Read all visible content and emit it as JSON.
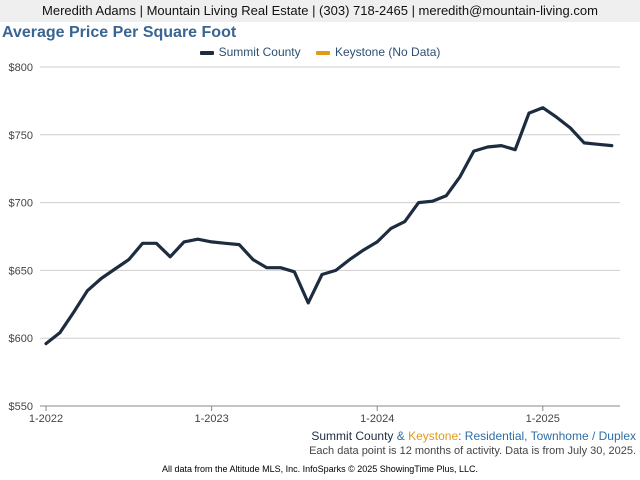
{
  "header": {
    "contact": "Meredith Adams | Mountain Living Real Estate | (303) 718-2465 | meredith@mountain-living.com"
  },
  "legend": {
    "items": [
      {
        "label": "Summit County",
        "color": "#1d2c3f"
      },
      {
        "label": "Keystone (No Data)",
        "color": "#e09a1a"
      }
    ]
  },
  "subtitle": {
    "area_a": "Summit County",
    "amp": " & ",
    "area_b": "Keystone",
    "rest": ": Residential, Townhome / Duplex"
  },
  "note": "Each data point is 12 months of activity. Data is from July 30, 2025.",
  "footer": "All data from the Altitude MLS, Inc. InfoSparks © 2025 ShowingTime Plus, LLC.",
  "chart_data": {
    "type": "line",
    "title": "Average Price Per Square Foot",
    "xlabel": "",
    "ylabel": "",
    "ylim": [
      550,
      800
    ],
    "yticks": [
      550,
      600,
      650,
      700,
      750,
      800
    ],
    "ytick_labels": [
      "$550",
      "$600",
      "$650",
      "$700",
      "$750",
      "$800"
    ],
    "xticks": [
      "2022-01",
      "2023-01",
      "2024-01",
      "2025-01"
    ],
    "xtick_labels": [
      "1-2022",
      "1-2023",
      "1-2024",
      "1-2025"
    ],
    "grid": true,
    "legend_position": "top-center",
    "series": [
      {
        "name": "Summit County",
        "color": "#1d2c3f",
        "points": [
          {
            "x": "2022-01",
            "y": 596
          },
          {
            "x": "2022-02",
            "y": 604
          },
          {
            "x": "2022-03",
            "y": 619
          },
          {
            "x": "2022-04",
            "y": 635
          },
          {
            "x": "2022-05",
            "y": 644
          },
          {
            "x": "2022-06",
            "y": 651
          },
          {
            "x": "2022-07",
            "y": 658
          },
          {
            "x": "2022-08",
            "y": 670
          },
          {
            "x": "2022-09",
            "y": 670
          },
          {
            "x": "2022-10",
            "y": 660
          },
          {
            "x": "2022-11",
            "y": 671
          },
          {
            "x": "2022-12",
            "y": 673
          },
          {
            "x": "2023-01",
            "y": 671
          },
          {
            "x": "2023-02",
            "y": 670
          },
          {
            "x": "2023-03",
            "y": 669
          },
          {
            "x": "2023-04",
            "y": 658
          },
          {
            "x": "2023-05",
            "y": 652
          },
          {
            "x": "2023-06",
            "y": 652
          },
          {
            "x": "2023-07",
            "y": 649
          },
          {
            "x": "2023-08",
            "y": 626
          },
          {
            "x": "2023-09",
            "y": 647
          },
          {
            "x": "2023-10",
            "y": 650
          },
          {
            "x": "2023-11",
            "y": 658
          },
          {
            "x": "2023-12",
            "y": 665
          },
          {
            "x": "2024-01",
            "y": 671
          },
          {
            "x": "2024-02",
            "y": 681
          },
          {
            "x": "2024-03",
            "y": 686
          },
          {
            "x": "2024-04",
            "y": 700
          },
          {
            "x": "2024-05",
            "y": 701
          },
          {
            "x": "2024-06",
            "y": 705
          },
          {
            "x": "2024-07",
            "y": 719
          },
          {
            "x": "2024-08",
            "y": 738
          },
          {
            "x": "2024-09",
            "y": 741
          },
          {
            "x": "2024-10",
            "y": 742
          },
          {
            "x": "2024-11",
            "y": 739
          },
          {
            "x": "2024-12",
            "y": 766
          },
          {
            "x": "2025-01",
            "y": 770
          },
          {
            "x": "2025-02",
            "y": 763
          },
          {
            "x": "2025-03",
            "y": 755
          },
          {
            "x": "2025-04",
            "y": 744
          },
          {
            "x": "2025-05",
            "y": 743
          },
          {
            "x": "2025-06",
            "y": 742
          }
        ]
      },
      {
        "name": "Keystone (No Data)",
        "color": "#e09a1a",
        "points": []
      }
    ]
  }
}
